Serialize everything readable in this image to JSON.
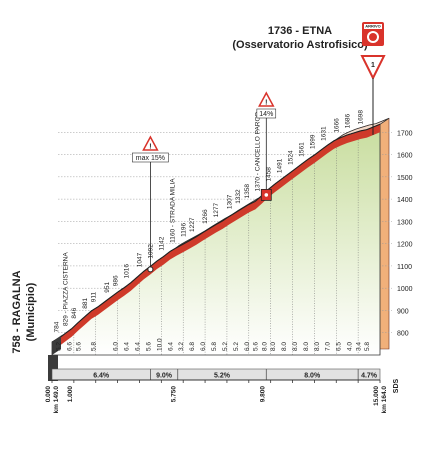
{
  "chart_data": {
    "type": "area",
    "start_name": "758 - RAGALNA",
    "start_sub": "(Municipio)",
    "finish_title": "1736 - ETNA",
    "finish_sub": "(Osservatorio Astrofisico)",
    "finish_sign_text": "ARRIVO",
    "last_km_flag": "1",
    "ylim": [
      700,
      1750
    ],
    "xlim": [
      0,
      15
    ],
    "y_ticks": [
      800,
      900,
      1000,
      1100,
      1200,
      1300,
      1400,
      1500,
      1600,
      1700
    ],
    "profile": {
      "x": [
        0,
        0.3,
        0.6,
        0.9,
        1.2,
        1.5,
        1.8,
        2.1,
        2.4,
        2.7,
        3.0,
        3.3,
        3.6,
        3.9,
        4.2,
        4.5,
        4.8,
        5.1,
        5.4,
        5.7,
        6.0,
        6.3,
        6.6,
        6.9,
        7.2,
        7.5,
        7.8,
        8.1,
        8.4,
        8.7,
        9.0,
        9.3,
        9.6,
        9.9,
        10.2,
        10.5,
        10.8,
        11.1,
        11.4,
        11.7,
        12.0,
        12.3,
        12.6,
        12.9,
        13.2,
        13.5,
        13.8,
        14.1,
        14.4,
        15.0
      ],
      "y": [
        758,
        774,
        796,
        818,
        846,
        872,
        898,
        916,
        938,
        960,
        982,
        1002,
        1024,
        1050,
        1076,
        1098,
        1122,
        1142,
        1165,
        1182,
        1198,
        1214,
        1231,
        1250,
        1268,
        1286,
        1302,
        1322,
        1340,
        1358,
        1376,
        1390,
        1416,
        1444,
        1468,
        1490,
        1512,
        1534,
        1556,
        1578,
        1598,
        1620,
        1642,
        1662,
        1676,
        1688,
        1697,
        1706,
        1712,
        1736
      ]
    },
    "spot_labels": [
      {
        "km": 0.3,
        "text": "784"
      },
      {
        "km": 0.7,
        "text": "829 - PIAZZA CISTERNA"
      },
      {
        "km": 1.1,
        "text": "846"
      },
      {
        "km": 1.6,
        "text": "881"
      },
      {
        "km": 2.0,
        "text": "911"
      },
      {
        "km": 2.6,
        "text": "951"
      },
      {
        "km": 3.0,
        "text": "986"
      },
      {
        "km": 3.5,
        "text": "1016"
      },
      {
        "km": 4.1,
        "text": "1047"
      },
      {
        "km": 4.6,
        "text": "1092"
      },
      {
        "km": 5.1,
        "text": "1142"
      },
      {
        "km": 5.6,
        "text": "1160 - STRADA MILIA"
      },
      {
        "km": 6.1,
        "text": "1196"
      },
      {
        "km": 6.5,
        "text": "1227"
      },
      {
        "km": 7.1,
        "text": "1266"
      },
      {
        "km": 7.6,
        "text": "1277"
      },
      {
        "km": 8.2,
        "text": "1307"
      },
      {
        "km": 8.6,
        "text": "1332"
      },
      {
        "km": 9.0,
        "text": "1358"
      },
      {
        "km": 9.5,
        "text": "1370 - CANCELLO PARCO"
      },
      {
        "km": 10.0,
        "text": "1458"
      },
      {
        "km": 10.5,
        "text": "1491"
      },
      {
        "km": 11.0,
        "text": "1524"
      },
      {
        "km": 11.5,
        "text": "1561"
      },
      {
        "km": 12.0,
        "text": "1599"
      },
      {
        "km": 12.5,
        "text": "1631"
      },
      {
        "km": 13.1,
        "text": "1666"
      },
      {
        "km": 13.6,
        "text": "1686"
      },
      {
        "km": 14.2,
        "text": "1698"
      }
    ],
    "gradients": [
      {
        "km": 0.4,
        "text": "5.2"
      },
      {
        "km": 0.9,
        "text": "6.6"
      },
      {
        "km": 1.3,
        "text": "5.6"
      },
      {
        "km": 2.0,
        "text": "5.8"
      },
      {
        "km": 3.0,
        "text": "6.0"
      },
      {
        "km": 3.5,
        "text": "6.4"
      },
      {
        "km": 4.0,
        "text": "6.4"
      },
      {
        "km": 4.5,
        "text": "5.6"
      },
      {
        "km": 5.0,
        "text": "10.0"
      },
      {
        "km": 5.5,
        "text": "6.4"
      },
      {
        "km": 6.0,
        "text": "3.2"
      },
      {
        "km": 6.5,
        "text": "6.8"
      },
      {
        "km": 7.0,
        "text": "6.0"
      },
      {
        "km": 7.5,
        "text": "5.8"
      },
      {
        "km": 8.0,
        "text": "5.2"
      },
      {
        "km": 8.5,
        "text": "5.2"
      },
      {
        "km": 9.0,
        "text": "6.0"
      },
      {
        "km": 9.4,
        "text": "5.6"
      },
      {
        "km": 9.8,
        "text": "8.0"
      },
      {
        "km": 10.2,
        "text": "8.0"
      },
      {
        "km": 10.7,
        "text": "8.0"
      },
      {
        "km": 11.2,
        "text": "8.0"
      },
      {
        "km": 11.7,
        "text": "8.0"
      },
      {
        "km": 12.2,
        "text": "8.0"
      },
      {
        "km": 12.7,
        "text": "7.0"
      },
      {
        "km": 13.2,
        "text": "6.5"
      },
      {
        "km": 13.7,
        "text": "4.0"
      },
      {
        "km": 14.1,
        "text": "3.4"
      },
      {
        "km": 14.5,
        "text": "5.8"
      }
    ],
    "avg_segments": [
      {
        "from": 0,
        "to": 4.5,
        "label": "6.4%"
      },
      {
        "from": 4.5,
        "to": 5.75,
        "label": "9.0%"
      },
      {
        "from": 5.75,
        "to": 9.8,
        "label": "5.2%"
      },
      {
        "from": 9.8,
        "to": 14.0,
        "label": "8.0%"
      },
      {
        "from": 14.0,
        "to": 15.0,
        "label": "4.7%"
      }
    ],
    "km_marks": [
      {
        "km": 0,
        "lines": [
          "0.000",
          "km 149.0"
        ]
      },
      {
        "km": 1,
        "lines": [
          "1.000"
        ]
      },
      {
        "km": 5.75,
        "lines": [
          "5.750"
        ]
      },
      {
        "km": 9.8,
        "lines": [
          "9.800"
        ]
      },
      {
        "km": 15,
        "lines": [
          "15.000",
          "km 164.0"
        ]
      }
    ],
    "km_ticks": [
      1,
      2,
      3,
      4,
      5,
      6,
      7,
      8,
      9,
      10,
      11,
      12,
      13,
      14
    ],
    "callouts": [
      {
        "km": 4.5,
        "label": "max 15%"
      },
      {
        "km": 9.8,
        "label": "14%"
      }
    ],
    "logo_text": "SDS",
    "colors": {
      "band_light": "#f6d9c8",
      "band_red": "#cf3a2a",
      "ground_top": "#c8dd9e",
      "ground_bottom": "#ffffff",
      "slope": "#f1b77e",
      "dark": "#3b3b3b"
    }
  }
}
